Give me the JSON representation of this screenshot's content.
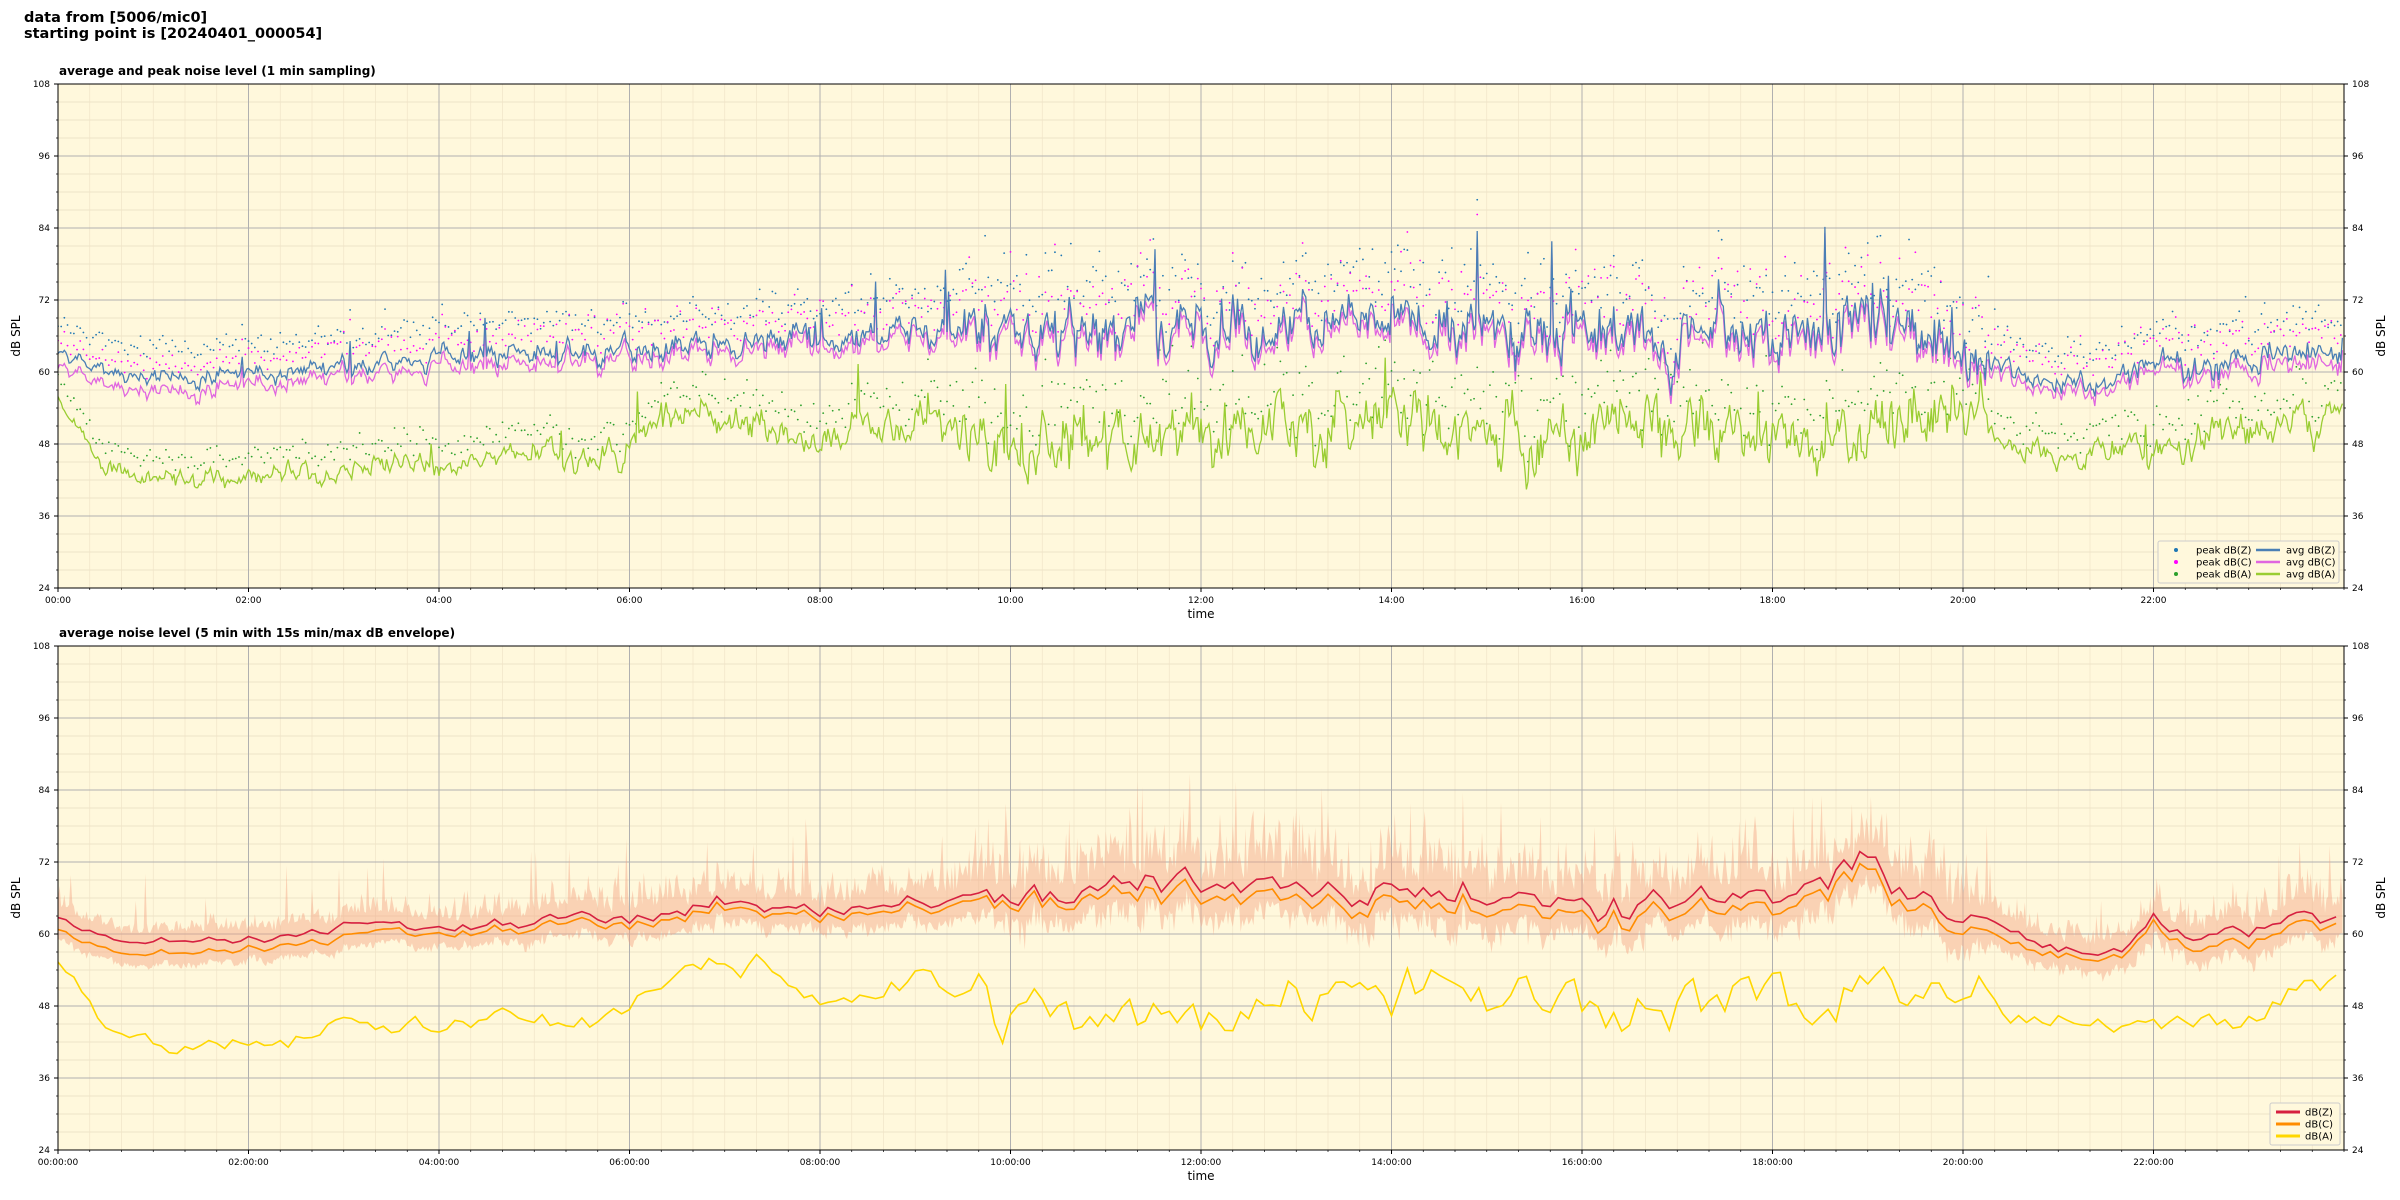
{
  "header": {
    "line1": "data from [5006/mic0]",
    "line2": "starting point is [20240401_000054]"
  },
  "chart_data": [
    {
      "type": "line",
      "title": "average and peak noise level (1 min sampling)",
      "xlabel": "time",
      "ylabel": "dB SPL",
      "ylim": [
        24,
        108
      ],
      "xlim_hours": [
        0,
        24
      ],
      "x_tick_labels": [
        "00:00",
        "02:00",
        "04:00",
        "06:00",
        "08:00",
        "10:00",
        "12:00",
        "14:00",
        "16:00",
        "18:00",
        "20:00",
        "22:00"
      ],
      "y_ticks": [
        24,
        36,
        48,
        60,
        72,
        84,
        96,
        108
      ],
      "grid": true,
      "legend_position": "bottom-right",
      "series": [
        {
          "name": "peak dB(Z)",
          "style": "dots",
          "color": "#1f77b4"
        },
        {
          "name": "peak dB(C)",
          "style": "dots",
          "color": "#ff00ff"
        },
        {
          "name": "peak dB(A)",
          "style": "dots",
          "color": "#2ca02c"
        },
        {
          "name": "avg dB(Z)",
          "style": "line",
          "color": "#4a7fb5"
        },
        {
          "name": "avg dB(C)",
          "style": "line",
          "color": "#e066e0"
        },
        {
          "name": "avg dB(A)",
          "style": "line",
          "color": "#9acd32"
        }
      ],
      "keypoints_hours": [
        0,
        0.5,
        1,
        1.5,
        2,
        2.5,
        3,
        3.5,
        4,
        4.5,
        5,
        5.5,
        6,
        6.5,
        7,
        7.5,
        8,
        8.5,
        9,
        9.5,
        10,
        10.5,
        11,
        11.5,
        12,
        12.5,
        13,
        13.5,
        14,
        14.5,
        15,
        15.5,
        16,
        16.5,
        17,
        17.5,
        18,
        18.5,
        19,
        19.5,
        20,
        20.5,
        21,
        21.5,
        22,
        22.5,
        23,
        23.5,
        24
      ],
      "avg_z_trend": [
        63,
        60,
        59,
        59.5,
        60,
        60.5,
        61,
        61.5,
        62,
        62.5,
        63,
        63,
        64,
        64.5,
        65,
        65,
        65,
        65.5,
        66,
        66.5,
        67,
        67,
        67.5,
        68,
        68,
        68.5,
        68,
        68,
        68,
        68,
        67.5,
        67,
        66.5,
        66,
        66,
        66,
        66.5,
        67,
        68,
        67,
        64,
        61,
        59,
        58,
        62,
        61,
        62,
        63,
        64
      ],
      "avg_c_trend": [
        61,
        58,
        57,
        57.5,
        58.5,
        59,
        60,
        60,
        60.5,
        61,
        61.5,
        62,
        63,
        63.5,
        64,
        64,
        64,
        64.5,
        65,
        65.5,
        66,
        66,
        66.5,
        67,
        67,
        67.5,
        67,
        67,
        67,
        67,
        66.5,
        66,
        65.5,
        65,
        65,
        65,
        65.5,
        66,
        67,
        66,
        63,
        60,
        58,
        57,
        61,
        60,
        60.5,
        61.5,
        62.5
      ],
      "avg_a_trend": [
        55,
        44,
        42,
        42,
        42,
        43,
        43.5,
        44,
        44,
        45,
        46,
        46,
        48,
        52,
        53,
        52,
        50,
        51,
        52,
        51,
        48,
        48,
        49,
        48,
        50,
        52,
        52,
        52,
        51,
        52,
        50,
        50,
        50,
        50,
        51,
        50,
        49,
        49,
        50,
        52,
        51,
        48,
        46,
        46,
        47,
        48,
        50,
        51,
        53
      ]
    },
    {
      "type": "line",
      "title": "average noise level (5 min with 15s min/max dB envelope)",
      "xlabel": "time",
      "ylabel": "dB SPL",
      "ylim": [
        24,
        108
      ],
      "xlim_hours": [
        0,
        24
      ],
      "x_tick_labels": [
        "00:00:00",
        "02:00:00",
        "04:00:00",
        "06:00:00",
        "08:00:00",
        "10:00:00",
        "12:00:00",
        "14:00:00",
        "16:00:00",
        "18:00:00",
        "20:00:00",
        "22:00:00"
      ],
      "y_ticks": [
        24,
        36,
        48,
        60,
        72,
        84,
        96,
        108
      ],
      "grid": true,
      "legend_position": "bottom-right",
      "series": [
        {
          "name": "dB(Z)",
          "color": "#d62040"
        },
        {
          "name": "dB(C)",
          "color": "#ff8c00"
        },
        {
          "name": "dB(A)",
          "color": "#ffd700"
        }
      ],
      "envelope_color": "#f4a582",
      "keypoints_hours": [
        0,
        0.5,
        1,
        1.5,
        2,
        2.5,
        3,
        3.5,
        4,
        4.5,
        5,
        5.5,
        6,
        6.5,
        7,
        7.5,
        8,
        8.5,
        9,
        9.5,
        10,
        10.5,
        11,
        11.5,
        12,
        12.5,
        13,
        13.5,
        14,
        14.5,
        15,
        15.5,
        16,
        16.5,
        17,
        17.5,
        18,
        18.5,
        19,
        19.5,
        20,
        20.5,
        21,
        21.5,
        22,
        22.5,
        23,
        23.5,
        24
      ],
      "z_trend": [
        63,
        59,
        58.5,
        59,
        59,
        60,
        62,
        61,
        61,
        61.5,
        62,
        62.5,
        63,
        64,
        65,
        65,
        64,
        64.5,
        65,
        65.5,
        66,
        66,
        67,
        68,
        68.5,
        69,
        68,
        68,
        69,
        68,
        67,
        66,
        65,
        65,
        66,
        66,
        67,
        68,
        70,
        67,
        63,
        60,
        57,
        56,
        62,
        60,
        61,
        62,
        63
      ],
      "c_trend": [
        61,
        57,
        56.5,
        57,
        57.5,
        58.5,
        60,
        60,
        60,
        60.5,
        61,
        61.5,
        62,
        63,
        64,
        64,
        63,
        63.5,
        64,
        64.5,
        65,
        65,
        65.5,
        66,
        66.5,
        67,
        66,
        66,
        67,
        66,
        65,
        64,
        63,
        63,
        64,
        64,
        65,
        66,
        68,
        65,
        61,
        58,
        56,
        55,
        61,
        58,
        59,
        60.5,
        62
      ],
      "a_trend": [
        56,
        44,
        42,
        42,
        42,
        43,
        45,
        44,
        44,
        45,
        46,
        46,
        48,
        53,
        54,
        53,
        50,
        51,
        52,
        51,
        47,
        46,
        46,
        46,
        47,
        49,
        50,
        51,
        51,
        52,
        49,
        49,
        49,
        49,
        49,
        48,
        48,
        47,
        54,
        52,
        50,
        46,
        45,
        44,
        47,
        46,
        48,
        51,
        53
      ]
    }
  ]
}
